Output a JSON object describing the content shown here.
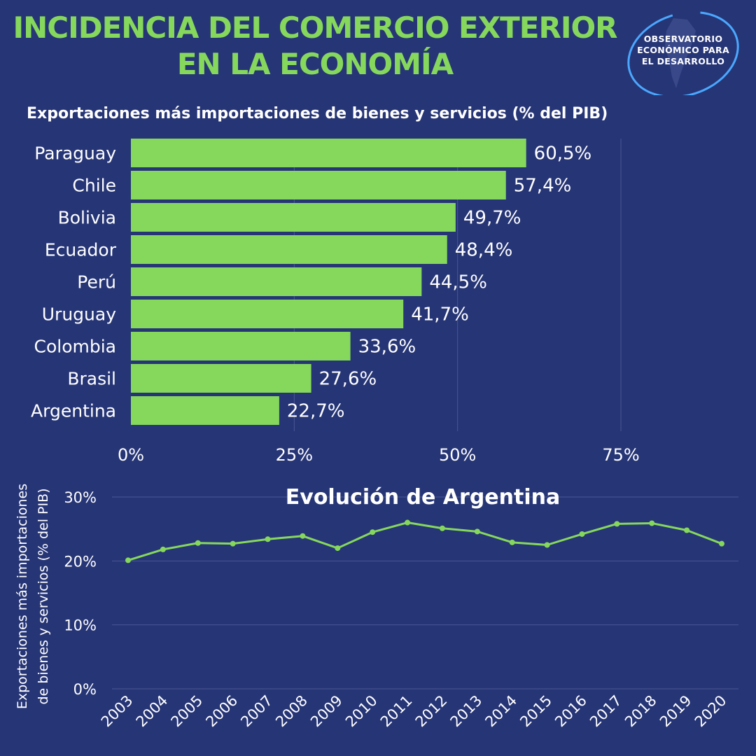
{
  "header": {
    "title_line1": "INCIDENCIA DEL COMERCIO EXTERIOR",
    "title_line2": "EN LA ECONOMÍA",
    "logo_lines": [
      "OBSERVATORIO",
      "ECONÓMICO PARA",
      "EL DESARROLLO"
    ]
  },
  "colors": {
    "background": "#263576",
    "accent": "#86d85c",
    "logo_ring": "#4aa8ff"
  },
  "chart_data": [
    {
      "type": "bar",
      "orientation": "horizontal",
      "title": "Exportaciones más importaciones de bienes y servicios (% del PIB)",
      "categories": [
        "Paraguay",
        "Chile",
        "Bolivia",
        "Ecuador",
        "Perú",
        "Uruguay",
        "Colombia",
        "Brasil",
        "Argentina"
      ],
      "values": [
        60.5,
        57.4,
        49.7,
        48.4,
        44.5,
        41.7,
        33.6,
        27.6,
        22.7
      ],
      "data_labels": [
        "60,5%",
        "57,4%",
        "49,7%",
        "48,4%",
        "44,5%",
        "41,7%",
        "33,6%",
        "27,6%",
        "22,7%"
      ],
      "xlim": [
        0,
        75
      ],
      "x_ticks": [
        0,
        25,
        50,
        75
      ],
      "x_tick_labels": [
        "0%",
        "25%",
        "50%",
        "75%"
      ],
      "grid": true,
      "color": "#86d85c"
    },
    {
      "type": "line",
      "title": "Evolución de Argentina",
      "ylabel": "Exportaciones más importaciones de bienes y servicios (% del PIB)",
      "ylabel_lines": [
        "Exportaciones más importaciones",
        "de bienes y servicios (% del PIB)"
      ],
      "x": [
        "2003",
        "2004",
        "2005",
        "2006",
        "2007",
        "2008",
        "2009",
        "2010",
        "2011",
        "2012",
        "2013",
        "2014",
        "2015",
        "2016",
        "2017",
        "2018",
        "2019",
        "2020"
      ],
      "values": [
        20.1,
        21.8,
        22.8,
        22.7,
        23.4,
        23.9,
        22.0,
        24.5,
        26.0,
        25.1,
        24.6,
        22.9,
        22.5,
        24.2,
        25.8,
        25.9,
        24.8,
        22.7
      ],
      "ylim": [
        0,
        30
      ],
      "y_ticks": [
        0,
        10,
        20,
        30
      ],
      "y_tick_labels": [
        "0%",
        "10%",
        "20%",
        "30%"
      ],
      "grid": true,
      "color": "#86d85c"
    }
  ]
}
